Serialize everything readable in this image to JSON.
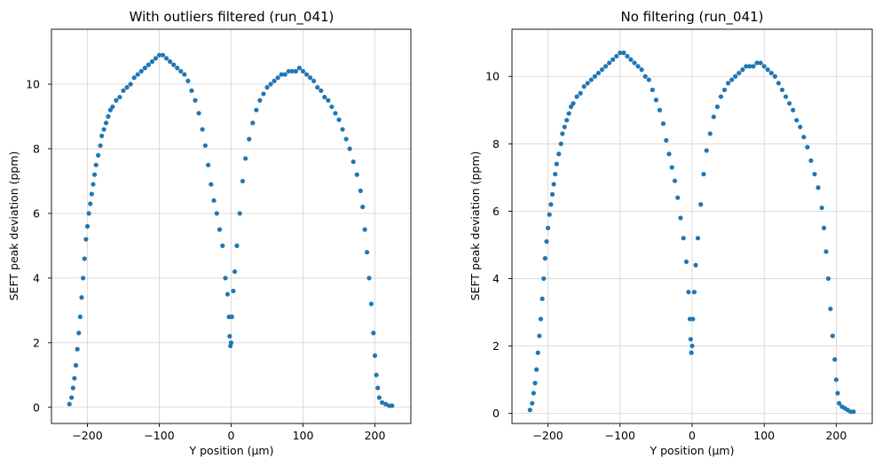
{
  "colors": {
    "points": "#1f77b4",
    "grid": "#d3d3d3",
    "axis": "#000000"
  },
  "chart_data": [
    {
      "type": "scatter",
      "title": "With outliers filtered (run_041)",
      "xlabel": "Y position (µm)",
      "ylabel": "SEFT peak deviation (ppm)",
      "xlim": [
        -250,
        250
      ],
      "ylim": [
        -0.5,
        11.7
      ],
      "xticks": [
        -200,
        -100,
        0,
        100,
        200
      ],
      "yticks": [
        0,
        2,
        4,
        6,
        8,
        10
      ],
      "xtick_labels": [
        "−200",
        "−100",
        "0",
        "100",
        "200"
      ],
      "ytick_labels": [
        "0",
        "2",
        "4",
        "6",
        "8",
        "10"
      ],
      "grid": true,
      "series": [
        {
          "color": "#1f77b4",
          "points": [
            [
              -225,
              0.1
            ],
            [
              -222,
              0.3
            ],
            [
              -220,
              0.6
            ],
            [
              -218,
              0.9
            ],
            [
              -216,
              1.3
            ],
            [
              -214,
              1.8
            ],
            [
              -212,
              2.3
            ],
            [
              -210,
              2.8
            ],
            [
              -208,
              3.4
            ],
            [
              -206,
              4.0
            ],
            [
              -204,
              4.6
            ],
            [
              -202,
              5.2
            ],
            [
              -200,
              5.6
            ],
            [
              -198,
              6.0
            ],
            [
              -196,
              6.3
            ],
            [
              -194,
              6.6
            ],
            [
              -192,
              6.9
            ],
            [
              -190,
              7.2
            ],
            [
              -188,
              7.5
            ],
            [
              -185,
              7.8
            ],
            [
              -182,
              8.1
            ],
            [
              -180,
              8.4
            ],
            [
              -177,
              8.6
            ],
            [
              -174,
              8.8
            ],
            [
              -171,
              9.0
            ],
            [
              -168,
              9.2
            ],
            [
              -165,
              9.3
            ],
            [
              -160,
              9.5
            ],
            [
              -155,
              9.6
            ],
            [
              -150,
              9.8
            ],
            [
              -145,
              9.9
            ],
            [
              -140,
              10.0
            ],
            [
              -135,
              10.2
            ],
            [
              -130,
              10.3
            ],
            [
              -125,
              10.4
            ],
            [
              -120,
              10.5
            ],
            [
              -115,
              10.6
            ],
            [
              -110,
              10.7
            ],
            [
              -105,
              10.8
            ],
            [
              -100,
              10.9
            ],
            [
              -95,
              10.9
            ],
            [
              -90,
              10.8
            ],
            [
              -85,
              10.7
            ],
            [
              -80,
              10.6
            ],
            [
              -75,
              10.5
            ],
            [
              -70,
              10.4
            ],
            [
              -65,
              10.3
            ],
            [
              -60,
              10.1
            ],
            [
              -55,
              9.8
            ],
            [
              -50,
              9.5
            ],
            [
              -45,
              9.1
            ],
            [
              -40,
              8.6
            ],
            [
              -36,
              8.1
            ],
            [
              -32,
              7.5
            ],
            [
              -28,
              6.9
            ],
            [
              -24,
              6.4
            ],
            [
              -20,
              6.0
            ],
            [
              -16,
              5.5
            ],
            [
              -12,
              5.0
            ],
            [
              -8,
              4.0
            ],
            [
              -5,
              3.5
            ],
            [
              -3,
              2.8
            ],
            [
              -2,
              2.2
            ],
            [
              -1,
              1.9
            ],
            [
              0,
              2.0
            ],
            [
              1,
              2.8
            ],
            [
              3,
              3.6
            ],
            [
              5,
              4.2
            ],
            [
              8,
              5.0
            ],
            [
              12,
              6.0
            ],
            [
              16,
              7.0
            ],
            [
              20,
              7.7
            ],
            [
              25,
              8.3
            ],
            [
              30,
              8.8
            ],
            [
              35,
              9.2
            ],
            [
              40,
              9.5
            ],
            [
              45,
              9.7
            ],
            [
              50,
              9.9
            ],
            [
              55,
              10.0
            ],
            [
              60,
              10.1
            ],
            [
              65,
              10.2
            ],
            [
              70,
              10.3
            ],
            [
              75,
              10.3
            ],
            [
              80,
              10.4
            ],
            [
              85,
              10.4
            ],
            [
              90,
              10.4
            ],
            [
              95,
              10.5
            ],
            [
              100,
              10.4
            ],
            [
              105,
              10.3
            ],
            [
              110,
              10.2
            ],
            [
              115,
              10.1
            ],
            [
              120,
              9.9
            ],
            [
              125,
              9.8
            ],
            [
              130,
              9.6
            ],
            [
              135,
              9.5
            ],
            [
              140,
              9.3
            ],
            [
              145,
              9.1
            ],
            [
              150,
              8.9
            ],
            [
              155,
              8.6
            ],
            [
              160,
              8.3
            ],
            [
              165,
              8.0
            ],
            [
              170,
              7.6
            ],
            [
              175,
              7.2
            ],
            [
              180,
              6.7
            ],
            [
              183,
              6.2
            ],
            [
              186,
              5.5
            ],
            [
              189,
              4.8
            ],
            [
              192,
              4.0
            ],
            [
              195,
              3.2
            ],
            [
              198,
              2.3
            ],
            [
              200,
              1.6
            ],
            [
              202,
              1.0
            ],
            [
              204,
              0.6
            ],
            [
              206,
              0.3
            ],
            [
              210,
              0.15
            ],
            [
              215,
              0.1
            ],
            [
              220,
              0.05
            ],
            [
              224,
              0.05
            ]
          ]
        }
      ]
    },
    {
      "type": "scatter",
      "title": "No filtering (run_041)",
      "xlabel": "Y position (µm)",
      "ylabel": "SEFT peak deviation (ppm)",
      "xlim": [
        -250,
        250
      ],
      "ylim": [
        -0.3,
        11.4
      ],
      "xticks": [
        -200,
        -100,
        0,
        100,
        200
      ],
      "yticks": [
        0,
        2,
        4,
        6,
        8,
        10
      ],
      "xtick_labels": [
        "−200",
        "−100",
        "0",
        "100",
        "200"
      ],
      "ytick_labels": [
        "0",
        "2",
        "4",
        "6",
        "8",
        "10"
      ],
      "grid": true,
      "series": [
        {
          "color": "#1f77b4",
          "points": [
            [
              -225,
              0.1
            ],
            [
              -222,
              0.3
            ],
            [
              -220,
              0.6
            ],
            [
              -218,
              0.9
            ],
            [
              -216,
              1.3
            ],
            [
              -214,
              1.8
            ],
            [
              -212,
              2.3
            ],
            [
              -210,
              2.8
            ],
            [
              -208,
              3.4
            ],
            [
              -206,
              4.0
            ],
            [
              -204,
              4.6
            ],
            [
              -202,
              5.1
            ],
            [
              -200,
              5.5
            ],
            [
              -198,
              5.9
            ],
            [
              -196,
              6.2
            ],
            [
              -194,
              6.5
            ],
            [
              -192,
              6.8
            ],
            [
              -190,
              7.1
            ],
            [
              -188,
              7.4
            ],
            [
              -185,
              7.7
            ],
            [
              -182,
              8.0
            ],
            [
              -180,
              8.3
            ],
            [
              -177,
              8.5
            ],
            [
              -174,
              8.7
            ],
            [
              -171,
              8.9
            ],
            [
              -168,
              9.1
            ],
            [
              -165,
              9.2
            ],
            [
              -160,
              9.4
            ],
            [
              -155,
              9.5
            ],
            [
              -150,
              9.7
            ],
            [
              -145,
              9.8
            ],
            [
              -140,
              9.9
            ],
            [
              -135,
              10.0
            ],
            [
              -130,
              10.1
            ],
            [
              -125,
              10.2
            ],
            [
              -120,
              10.3
            ],
            [
              -115,
              10.4
            ],
            [
              -110,
              10.5
            ],
            [
              -105,
              10.6
            ],
            [
              -100,
              10.7
            ],
            [
              -95,
              10.7
            ],
            [
              -90,
              10.6
            ],
            [
              -85,
              10.5
            ],
            [
              -80,
              10.4
            ],
            [
              -75,
              10.3
            ],
            [
              -70,
              10.2
            ],
            [
              -65,
              10.0
            ],
            [
              -60,
              9.9
            ],
            [
              -55,
              9.6
            ],
            [
              -50,
              9.3
            ],
            [
              -45,
              9.0
            ],
            [
              -40,
              8.6
            ],
            [
              -36,
              8.1
            ],
            [
              -32,
              7.7
            ],
            [
              -28,
              7.3
            ],
            [
              -24,
              6.9
            ],
            [
              -20,
              6.4
            ],
            [
              -16,
              5.8
            ],
            [
              -12,
              5.2
            ],
            [
              -8,
              4.5
            ],
            [
              -5,
              3.6
            ],
            [
              -3,
              2.8
            ],
            [
              -2,
              2.2
            ],
            [
              -1,
              1.8
            ],
            [
              0,
              2.0
            ],
            [
              1,
              2.8
            ],
            [
              3,
              3.6
            ],
            [
              5,
              4.4
            ],
            [
              8,
              5.2
            ],
            [
              12,
              6.2
            ],
            [
              16,
              7.1
            ],
            [
              20,
              7.8
            ],
            [
              25,
              8.3
            ],
            [
              30,
              8.8
            ],
            [
              35,
              9.1
            ],
            [
              40,
              9.4
            ],
            [
              45,
              9.6
            ],
            [
              50,
              9.8
            ],
            [
              55,
              9.9
            ],
            [
              60,
              10.0
            ],
            [
              65,
              10.1
            ],
            [
              70,
              10.2
            ],
            [
              75,
              10.3
            ],
            [
              80,
              10.3
            ],
            [
              85,
              10.3
            ],
            [
              90,
              10.4
            ],
            [
              95,
              10.4
            ],
            [
              100,
              10.3
            ],
            [
              105,
              10.2
            ],
            [
              110,
              10.1
            ],
            [
              115,
              10.0
            ],
            [
              120,
              9.8
            ],
            [
              125,
              9.6
            ],
            [
              130,
              9.4
            ],
            [
              135,
              9.2
            ],
            [
              140,
              9.0
            ],
            [
              145,
              8.7
            ],
            [
              150,
              8.5
            ],
            [
              155,
              8.2
            ],
            [
              160,
              7.9
            ],
            [
              165,
              7.5
            ],
            [
              170,
              7.1
            ],
            [
              175,
              6.7
            ],
            [
              180,
              6.1
            ],
            [
              183,
              5.5
            ],
            [
              186,
              4.8
            ],
            [
              189,
              4.0
            ],
            [
              192,
              3.1
            ],
            [
              195,
              2.3
            ],
            [
              198,
              1.6
            ],
            [
              200,
              1.0
            ],
            [
              202,
              0.6
            ],
            [
              204,
              0.3
            ],
            [
              208,
              0.2
            ],
            [
              212,
              0.15
            ],
            [
              216,
              0.1
            ],
            [
              220,
              0.05
            ],
            [
              224,
              0.05
            ]
          ]
        }
      ]
    }
  ]
}
